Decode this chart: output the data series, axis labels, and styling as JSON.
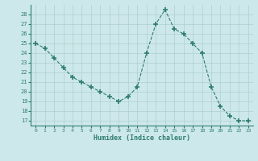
{
  "x": [
    0,
    1,
    2,
    3,
    4,
    5,
    6,
    7,
    8,
    9,
    10,
    11,
    12,
    13,
    14,
    15,
    16,
    17,
    18,
    19,
    20,
    21,
    22,
    23
  ],
  "y": [
    25,
    24.5,
    23.5,
    22.5,
    21.5,
    21,
    20.5,
    20,
    19.5,
    19,
    19.5,
    20.5,
    24,
    27,
    28.5,
    26.5,
    26,
    25,
    24,
    20.5,
    18.5,
    17.5,
    17,
    17
  ],
  "line_color": "#2e7d6e",
  "marker": "+",
  "marker_size": 4,
  "bg_color": "#cde8ea",
  "grid_color": "#aecfcf",
  "xlabel": "Humidex (Indice chaleur)",
  "ylim": [
    16.5,
    29.0
  ],
  "xlim": [
    -0.5,
    23.5
  ],
  "yticks": [
    17,
    18,
    19,
    20,
    21,
    22,
    23,
    24,
    25,
    26,
    27,
    28
  ],
  "xticks": [
    0,
    1,
    2,
    3,
    4,
    5,
    6,
    7,
    8,
    9,
    10,
    11,
    12,
    13,
    14,
    15,
    16,
    17,
    18,
    19,
    20,
    21,
    22,
    23
  ]
}
